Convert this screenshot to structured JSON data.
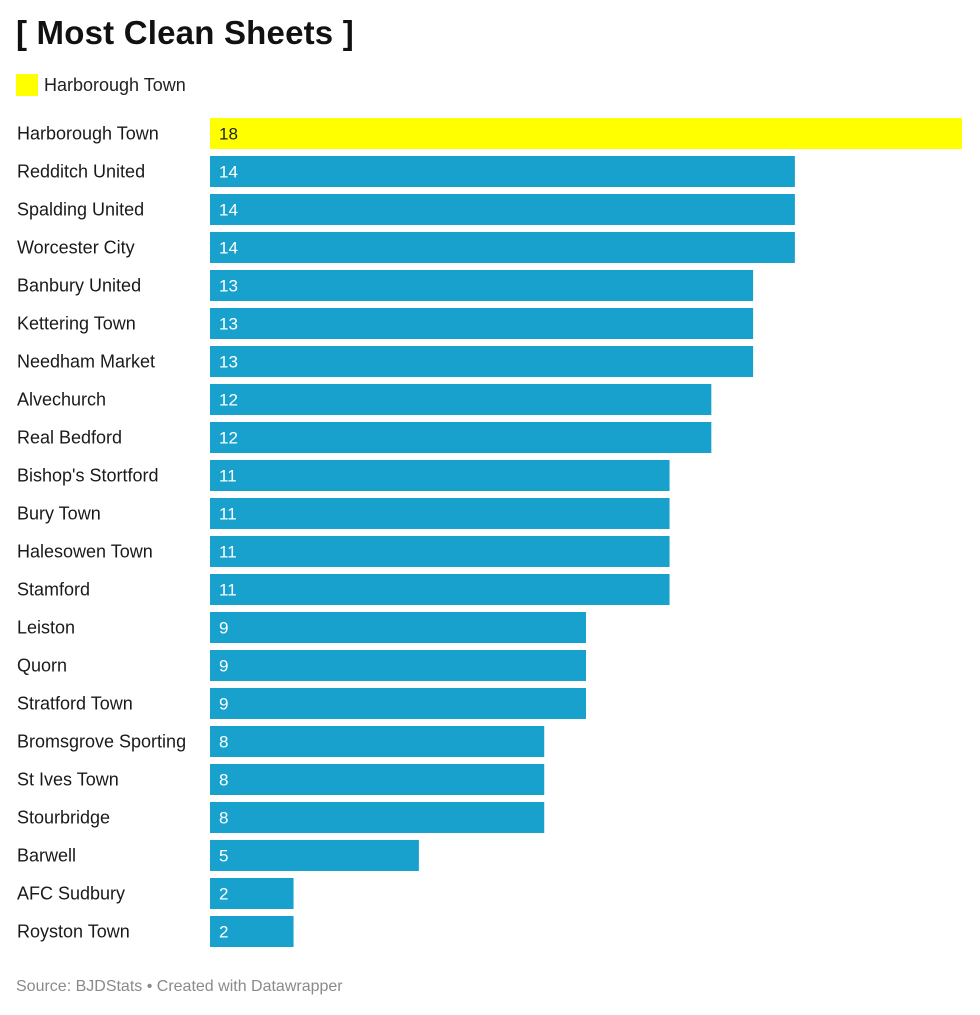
{
  "title": "[ Most Clean Sheets ]",
  "legend": {
    "label": "Harborough Town",
    "color": "#ffff00"
  },
  "footer": "Source: BJDStats • Created with Datawrapper",
  "colors": {
    "highlight": "#ffff00",
    "default": "#18a1cd",
    "highlight_text": "#222222",
    "default_text": "#ffffff"
  },
  "chart_data": {
    "type": "bar",
    "orientation": "horizontal",
    "categories": [
      "Harborough Town",
      "Redditch United",
      "Spalding United",
      "Worcester City",
      "Banbury United",
      "Kettering Town",
      "Needham Market",
      "Alvechurch",
      "Real Bedford",
      "Bishop's Stortford",
      "Bury Town",
      "Halesowen Town",
      "Stamford",
      "Leiston",
      "Quorn",
      "Stratford Town",
      "Bromsgrove Sporting",
      "St Ives Town",
      "Stourbridge",
      "Barwell",
      "AFC Sudbury",
      "Royston Town"
    ],
    "values": [
      18,
      14,
      14,
      14,
      13,
      13,
      13,
      12,
      12,
      11,
      11,
      11,
      11,
      9,
      9,
      9,
      8,
      8,
      8,
      5,
      2,
      2
    ],
    "highlight": [
      "Harborough Town"
    ],
    "xlim": [
      0,
      18
    ],
    "grid": false,
    "legend": "top-left"
  }
}
